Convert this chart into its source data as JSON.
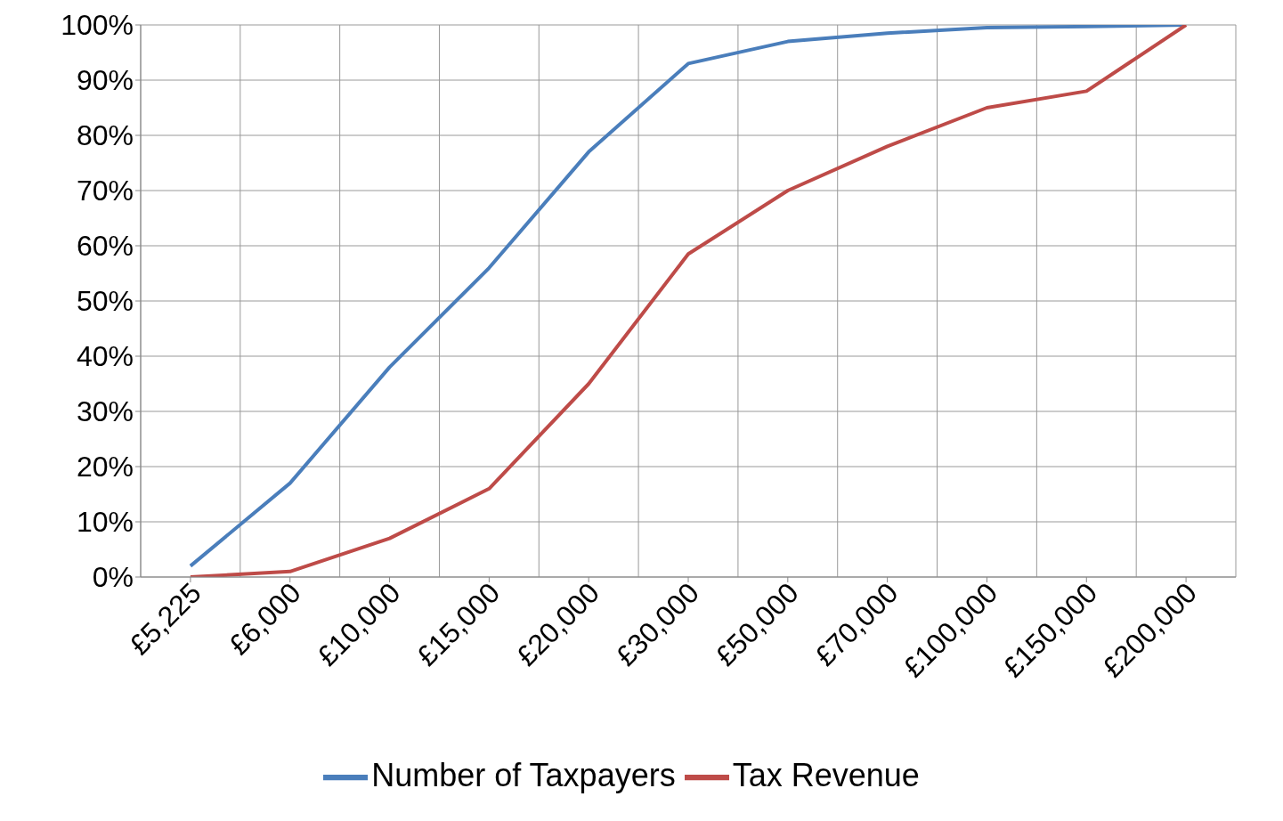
{
  "chart_data": {
    "type": "line",
    "categories": [
      "£5,225",
      "£6,000",
      "£10,000",
      "£15,000",
      "£20,000",
      "£30,000",
      "£50,000",
      "£70,000",
      "£100,000",
      "£150,000",
      "£200,000"
    ],
    "series": [
      {
        "name": "Number of Taxpayers",
        "color": "#4a7ebb",
        "values": [
          2,
          17,
          38,
          56,
          77,
          93,
          97,
          98.5,
          99.5,
          99.7,
          100
        ]
      },
      {
        "name": "Tax Revenue",
        "color": "#be4b48",
        "values": [
          0,
          1,
          7,
          16,
          35,
          58.5,
          70,
          78,
          85,
          88,
          100
        ]
      }
    ],
    "ylim": [
      0,
      100
    ],
    "yticks": [
      {
        "value": 0,
        "label": "0%"
      },
      {
        "value": 10,
        "label": "10%"
      },
      {
        "value": 20,
        "label": "20%"
      },
      {
        "value": 30,
        "label": "30%"
      },
      {
        "value": 40,
        "label": "40%"
      },
      {
        "value": 50,
        "label": "50%"
      },
      {
        "value": 60,
        "label": "60%"
      },
      {
        "value": 70,
        "label": "70%"
      },
      {
        "value": 80,
        "label": "80%"
      },
      {
        "value": 90,
        "label": "90%"
      },
      {
        "value": 100,
        "label": "100%"
      }
    ],
    "grid": true,
    "legend": "bottom",
    "marker": "none",
    "line_style": "solid"
  }
}
